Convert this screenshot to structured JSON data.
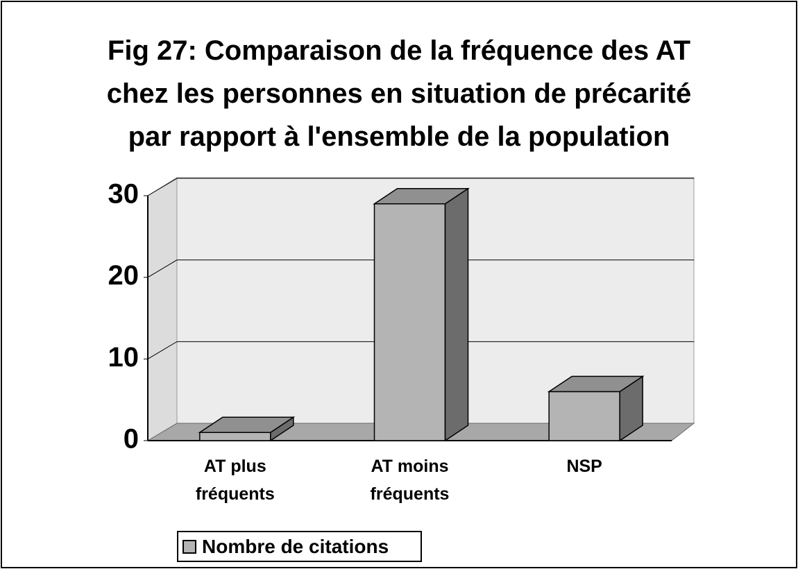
{
  "chart_data": {
    "type": "bar3d",
    "title": "Fig 27: Comparaison de la fréquence des AT chez les personnes en situation de précarité par rapport à l'ensemble de la population",
    "categories": [
      "AT plus fréquents",
      "AT moins fréquents",
      "NSP"
    ],
    "series": [
      {
        "name": "Nombre de citations",
        "color": "#b4b4b4",
        "values": [
          1,
          29,
          6
        ]
      }
    ],
    "ylim": [
      0,
      30
    ],
    "yticks": [
      0,
      10,
      20,
      30
    ],
    "grid": true,
    "legend": "bottom"
  }
}
